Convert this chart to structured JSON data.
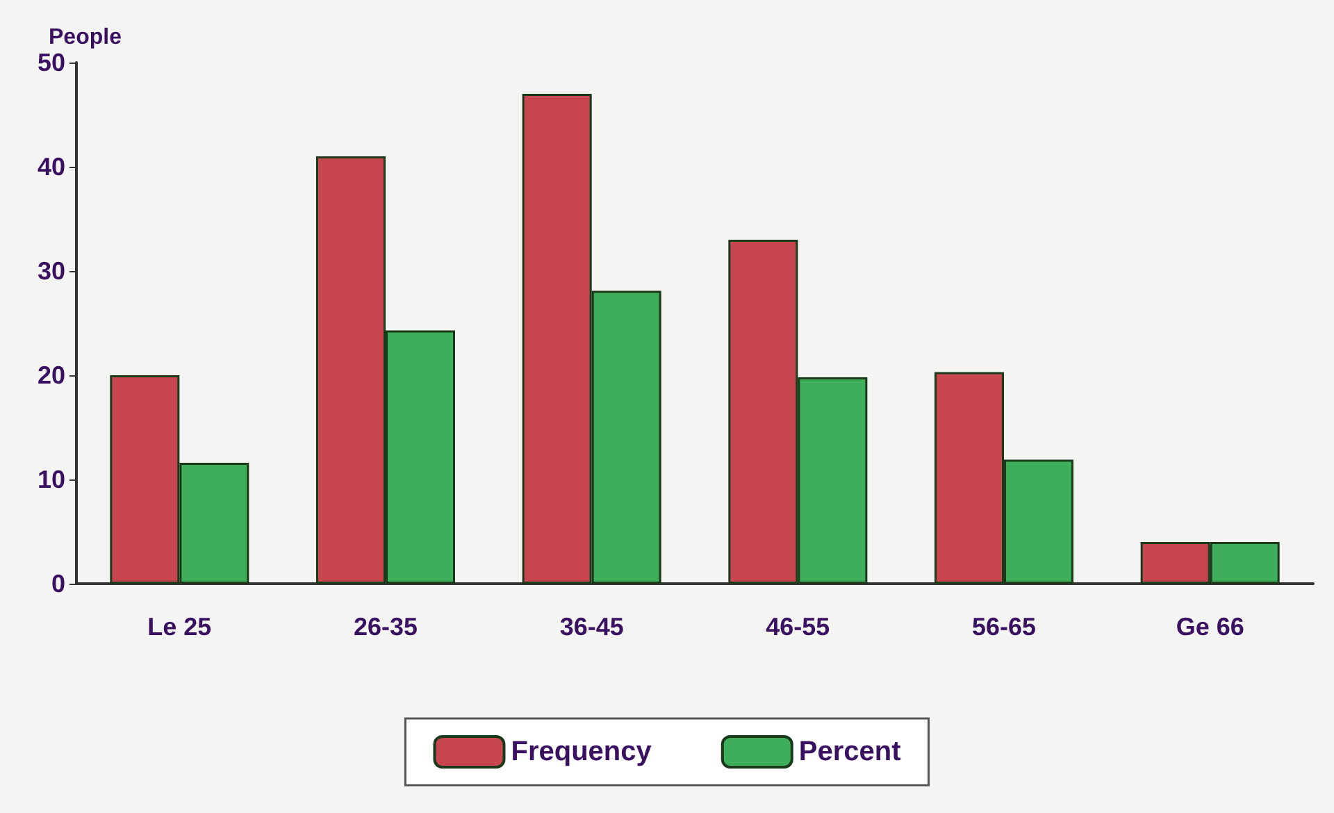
{
  "chart_data": {
    "type": "bar",
    "ylabel": "People",
    "categories": [
      "Le 25",
      "26-35",
      "36-45",
      "46-55",
      "56-65",
      "Ge 66"
    ],
    "series": [
      {
        "name": "Frequency",
        "color": "#c8464f",
        "values": [
          20,
          41,
          47,
          33,
          20.3,
          4
        ]
      },
      {
        "name": "Percent",
        "color": "#3fae5a",
        "values": [
          11.6,
          24.3,
          28.1,
          19.8,
          11.9,
          4
        ]
      }
    ],
    "ylim": [
      0,
      50
    ],
    "yticks": [
      0,
      10,
      20,
      30,
      40,
      50
    ],
    "grid": false,
    "legend": "bottom"
  }
}
